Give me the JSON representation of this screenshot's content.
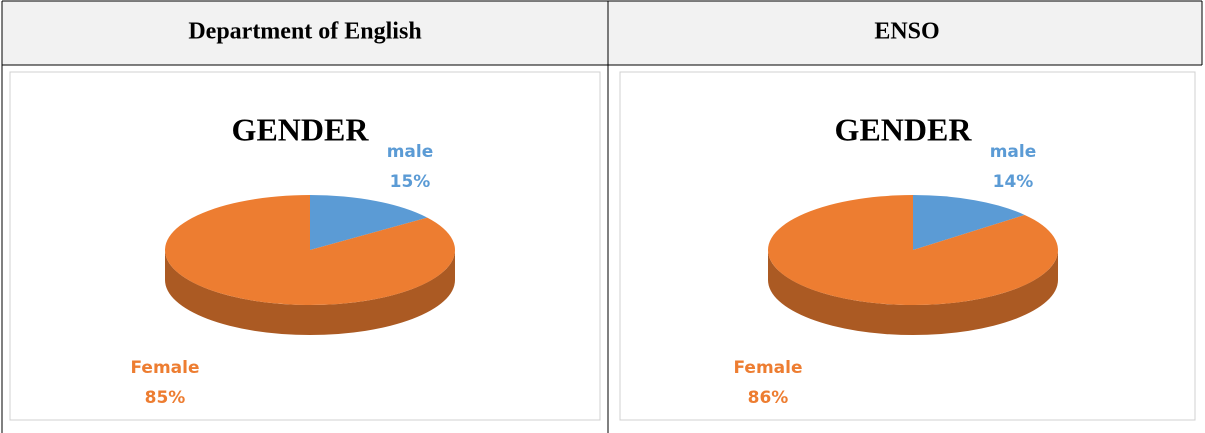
{
  "table": {
    "headers": [
      "Department of English",
      "ENSO"
    ]
  },
  "chart_data": [
    {
      "type": "pie",
      "title": "GENDER",
      "categories": [
        "male",
        "Female"
      ],
      "values": [
        15,
        85
      ],
      "value_labels": [
        "15%",
        "85%"
      ],
      "colors": [
        "#5b9bd5",
        "#ed7d31"
      ]
    },
    {
      "type": "pie",
      "title": "GENDER",
      "categories": [
        "male",
        "Female"
      ],
      "values": [
        14,
        86
      ],
      "value_labels": [
        "14%",
        "86%"
      ],
      "colors": [
        "#5b9bd5",
        "#ed7d31"
      ]
    }
  ]
}
